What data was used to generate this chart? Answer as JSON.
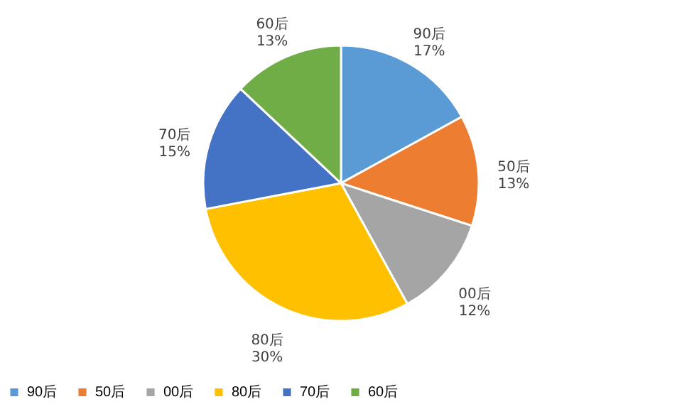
{
  "chart_data": {
    "type": "pie",
    "categories": [
      "90后",
      "50后",
      "00后",
      "80后",
      "70后",
      "60后"
    ],
    "values": [
      17,
      13,
      12,
      30,
      15,
      13
    ],
    "value_labels": [
      "17%",
      "13%",
      "12%",
      "30%",
      "15%",
      "13%"
    ],
    "colors": [
      "#5b9bd5",
      "#ed7d31",
      "#a5a5a5",
      "#ffc000",
      "#4472c4",
      "#70ad47"
    ],
    "legend": "bottom"
  }
}
